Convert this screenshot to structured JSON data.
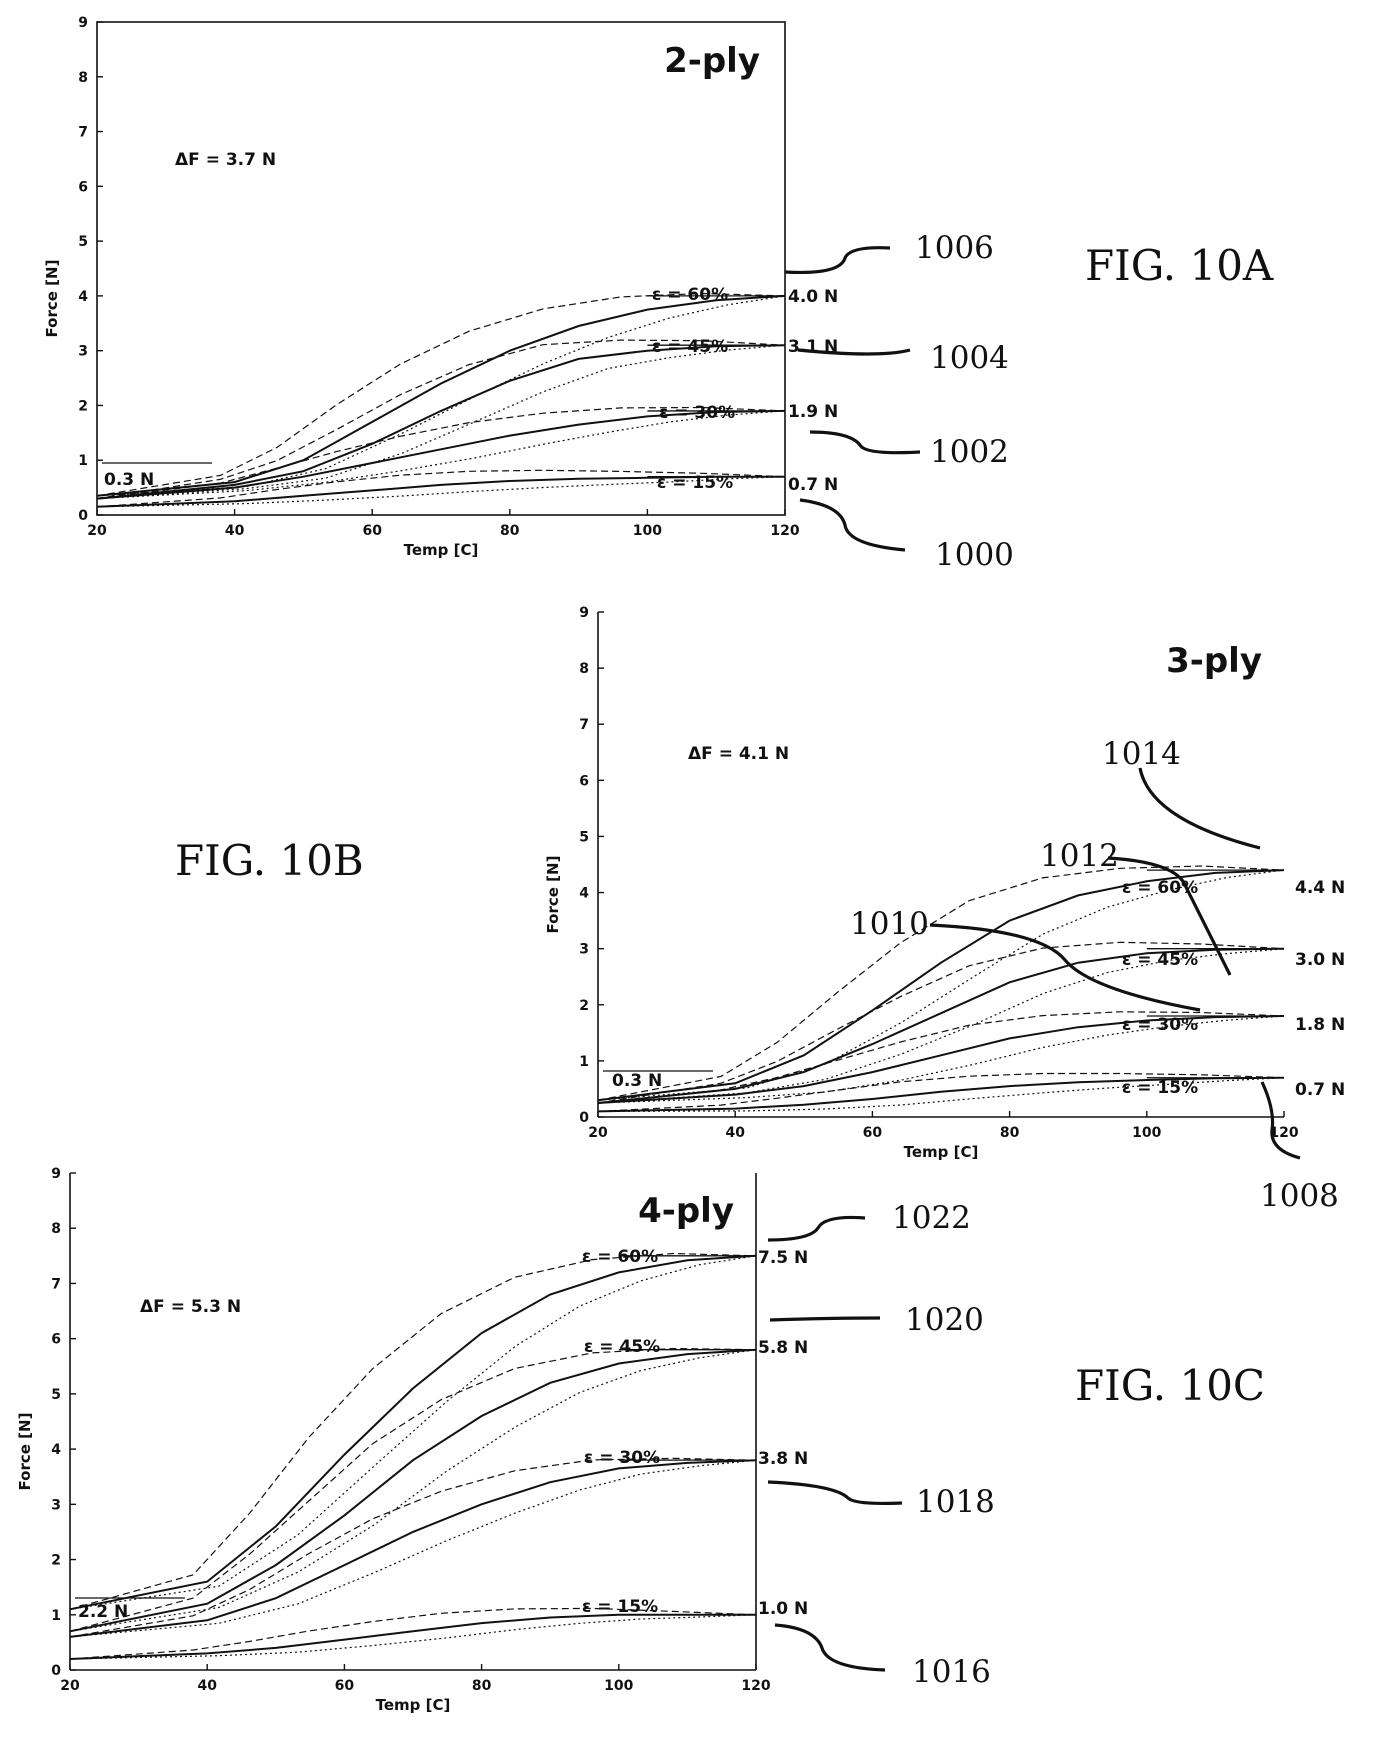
{
  "chart_data": [
    {
      "type": "line",
      "figure_label": "FIG. 10A",
      "title": "2-ply",
      "xlabel": "Temp [C]",
      "ylabel": "Force [N]",
      "xlim": [
        20,
        120
      ],
      "ylim": [
        0,
        9
      ],
      "x_ticks": [
        "20",
        "40",
        "60",
        "80",
        "100",
        "120"
      ],
      "y_ticks": [
        "0",
        "1",
        "2",
        "3",
        "4",
        "5",
        "6",
        "7",
        "8",
        "9"
      ],
      "delta_label": "ΔF = 3.7 N",
      "start_label": "0.3 N",
      "start_value": 0.3,
      "series": [
        {
          "strain": "ε = 15%",
          "end_label": "0.7 N",
          "end_value": 0.7,
          "ref": "1000",
          "x": [
            20,
            40,
            50,
            60,
            70,
            80,
            90,
            100,
            110,
            120
          ],
          "y": [
            0.15,
            0.25,
            0.35,
            0.45,
            0.55,
            0.62,
            0.66,
            0.68,
            0.7,
            0.7
          ]
        },
        {
          "strain": "ε = 30%",
          "end_label": "1.9 N",
          "end_value": 1.9,
          "ref": "1002",
          "x": [
            20,
            40,
            50,
            60,
            70,
            80,
            90,
            100,
            110,
            120
          ],
          "y": [
            0.3,
            0.5,
            0.7,
            0.95,
            1.2,
            1.45,
            1.65,
            1.8,
            1.88,
            1.9
          ]
        },
        {
          "strain": "ε = 45%",
          "end_label": "3.1 N",
          "end_value": 3.1,
          "ref": "1004",
          "x": [
            20,
            40,
            50,
            60,
            70,
            80,
            90,
            100,
            110,
            120
          ],
          "y": [
            0.3,
            0.55,
            0.8,
            1.3,
            1.9,
            2.45,
            2.85,
            3.0,
            3.08,
            3.1
          ]
        },
        {
          "strain": "ε = 60%",
          "end_label": "4.0 N",
          "end_value": 4.0,
          "ref": "1006",
          "x": [
            20,
            40,
            50,
            60,
            70,
            80,
            90,
            100,
            110,
            120
          ],
          "y": [
            0.35,
            0.6,
            1.0,
            1.7,
            2.4,
            3.0,
            3.45,
            3.75,
            3.92,
            4.0
          ]
        }
      ]
    },
    {
      "type": "line",
      "figure_label": "FIG. 10B",
      "title": "3-ply",
      "xlabel": "Temp [C]",
      "ylabel": "Force [N]",
      "xlim": [
        20,
        120
      ],
      "ylim": [
        0,
        9
      ],
      "x_ticks": [
        "20",
        "40",
        "60",
        "80",
        "100",
        "120"
      ],
      "y_ticks": [
        "0",
        "1",
        "2",
        "3",
        "4",
        "5",
        "6",
        "7",
        "8",
        "9"
      ],
      "delta_label": "ΔF = 4.1 N",
      "start_label": "0.3 N",
      "start_value": 0.3,
      "series": [
        {
          "strain": "ε = 15%",
          "end_label": "0.7 N",
          "end_value": 0.7,
          "ref": "1008",
          "x": [
            20,
            40,
            50,
            60,
            70,
            80,
            90,
            100,
            110,
            120
          ],
          "y": [
            0.1,
            0.15,
            0.22,
            0.32,
            0.45,
            0.55,
            0.62,
            0.66,
            0.69,
            0.7
          ]
        },
        {
          "strain": "ε = 30%",
          "end_label": "1.8 N",
          "end_value": 1.8,
          "ref": "1010",
          "x": [
            20,
            40,
            50,
            60,
            70,
            80,
            90,
            100,
            110,
            120
          ],
          "y": [
            0.25,
            0.4,
            0.55,
            0.8,
            1.1,
            1.4,
            1.6,
            1.72,
            1.78,
            1.8
          ]
        },
        {
          "strain": "ε = 45%",
          "end_label": "3.0 N",
          "end_value": 3.0,
          "ref": "1012",
          "x": [
            20,
            40,
            50,
            60,
            70,
            80,
            90,
            100,
            110,
            120
          ],
          "y": [
            0.25,
            0.5,
            0.8,
            1.3,
            1.85,
            2.4,
            2.75,
            2.92,
            2.98,
            3.0
          ]
        },
        {
          "strain": "ε = 60%",
          "end_label": "4.4 N",
          "end_value": 4.4,
          "ref": "1014",
          "x": [
            20,
            40,
            50,
            60,
            70,
            80,
            90,
            100,
            110,
            120
          ],
          "y": [
            0.3,
            0.6,
            1.1,
            1.9,
            2.75,
            3.5,
            3.95,
            4.2,
            4.35,
            4.4
          ]
        }
      ]
    },
    {
      "type": "line",
      "figure_label": "FIG. 10C",
      "title": "4-ply",
      "xlabel": "Temp [C]",
      "ylabel": "Force [N]",
      "xlim": [
        20,
        120
      ],
      "ylim": [
        0,
        9
      ],
      "x_ticks": [
        "20",
        "40",
        "60",
        "80",
        "100",
        "120"
      ],
      "y_ticks": [
        "0",
        "1",
        "2",
        "3",
        "4",
        "5",
        "6",
        "7",
        "8",
        "9"
      ],
      "delta_label": "ΔF = 5.3 N",
      "start_label": "2.2 N",
      "start_value": 2.2,
      "series": [
        {
          "strain": "ε = 15%",
          "end_label": "1.0 N",
          "end_value": 1.0,
          "ref": "1016",
          "x": [
            20,
            40,
            50,
            60,
            70,
            80,
            90,
            100,
            110,
            120
          ],
          "y": [
            0.2,
            0.3,
            0.4,
            0.55,
            0.7,
            0.85,
            0.95,
            1.0,
            1.0,
            1.0
          ]
        },
        {
          "strain": "ε = 30%",
          "end_label": "3.8 N",
          "end_value": 3.8,
          "ref": "1018",
          "x": [
            20,
            40,
            50,
            60,
            70,
            80,
            90,
            100,
            110,
            120
          ],
          "y": [
            0.6,
            0.9,
            1.3,
            1.9,
            2.5,
            3.0,
            3.4,
            3.65,
            3.75,
            3.8
          ]
        },
        {
          "strain": "ε = 45%",
          "end_label": "5.8 N",
          "end_value": 5.8,
          "ref": "1020",
          "x": [
            20,
            40,
            50,
            60,
            70,
            80,
            90,
            100,
            110,
            120
          ],
          "y": [
            0.7,
            1.2,
            1.9,
            2.8,
            3.8,
            4.6,
            5.2,
            5.55,
            5.72,
            5.8
          ]
        },
        {
          "strain": "ε = 60%",
          "end_label": "7.5 N",
          "end_value": 7.5,
          "ref": "1022",
          "x": [
            20,
            40,
            50,
            60,
            70,
            80,
            90,
            100,
            110,
            120
          ],
          "y": [
            1.1,
            1.6,
            2.6,
            3.9,
            5.1,
            6.1,
            6.8,
            7.2,
            7.42,
            7.5
          ]
        }
      ]
    }
  ]
}
